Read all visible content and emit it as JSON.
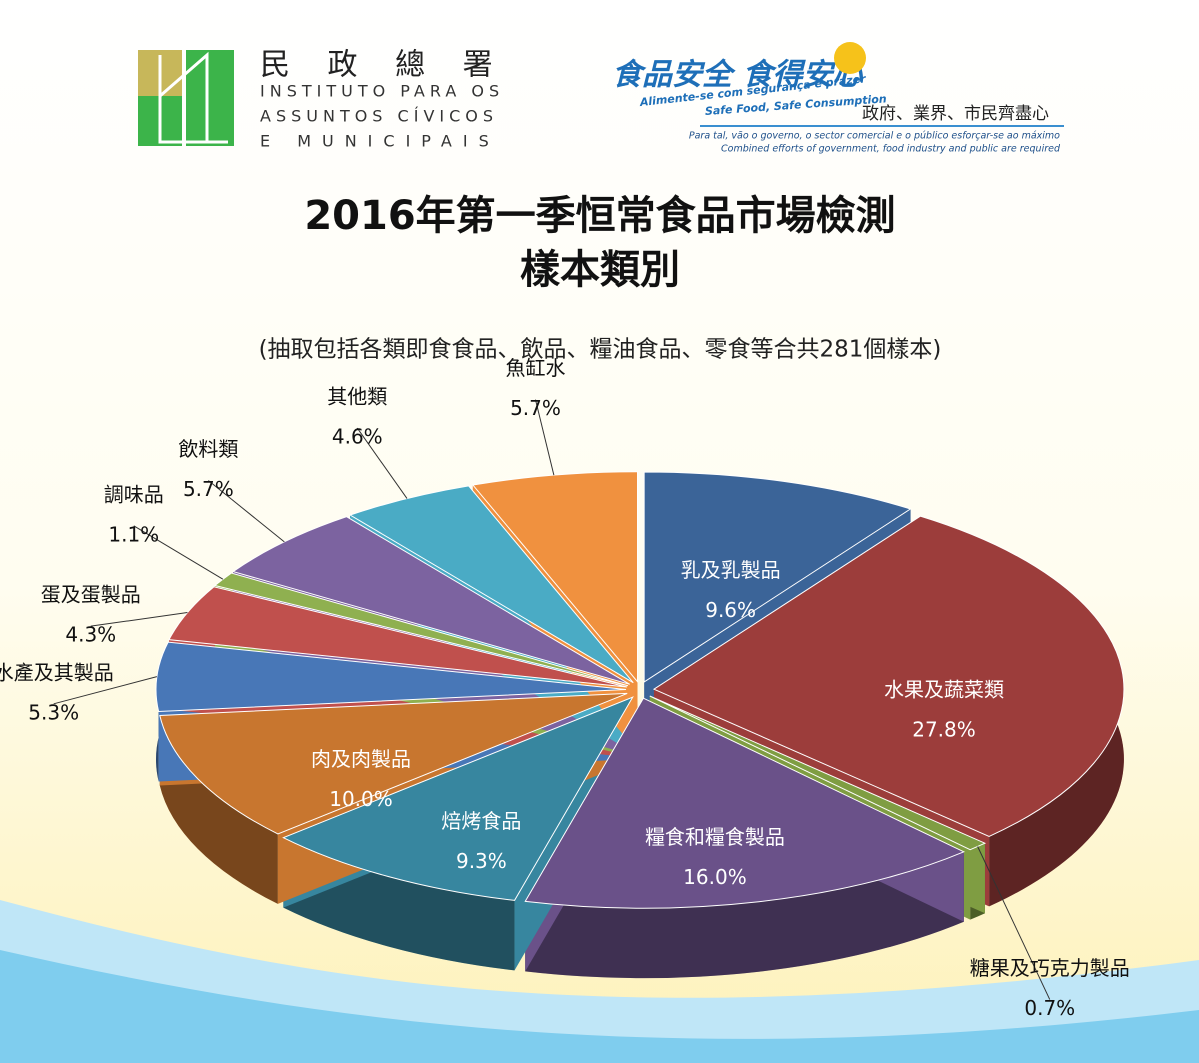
{
  "header": {
    "org_name": "民 政 總 署",
    "org_lines": [
      "INSTITUTO PARA OS",
      "ASSUNTOS CÍVICOS",
      "E MUNICIPAIS"
    ],
    "campaign_title": "食品安全 食得安心",
    "campaign_pt": "Alimente-se com segurança e prazer",
    "campaign_en": "Safe Food, Safe Consumption",
    "campaign_motto": "政府、業界、市民齊盡心",
    "campaign_motto_pt": "Para tal, vão o governo, o sector comercial e o público esforçar-se ao máximo",
    "campaign_motto_en": "Combined efforts of government, food industry and public are required"
  },
  "chart_data": {
    "type": "pie",
    "title": [
      "2016年第一季恒常食品市場檢測",
      "樣本類別"
    ],
    "subtitle": "(抽取包括各類即食食品、飲品、糧油食品、零食等合共281個樣本)",
    "categories": [
      "乳及乳製品",
      "水果及蔬菜類",
      "糖果及巧克力製品",
      "糧食和糧食製品",
      "焙烤食品",
      "肉及肉製品",
      "水產及其製品",
      "蛋及蛋製品",
      "調味品",
      "飲料類",
      "其他類",
      "魚缸水"
    ],
    "values": [
      9.6,
      27.8,
      0.7,
      16.0,
      9.3,
      10.0,
      5.3,
      4.3,
      1.1,
      5.7,
      4.6,
      5.7
    ],
    "value_labels": [
      "9.6%",
      "27.8%",
      "0.7%",
      "16.0%",
      "9.3%",
      "10.0%",
      "5.3%",
      "4.3%",
      "1.1%",
      "5.7%",
      "4.6%",
      "5.7%"
    ],
    "colors": [
      "#3b6498",
      "#9c3d3b",
      "#7f9d42",
      "#6a5189",
      "#37869f",
      "#c8762f",
      "#4877b7",
      "#c0504d",
      "#8fb050",
      "#7c63a0",
      "#4aabc5",
      "#f0913f"
    ]
  }
}
